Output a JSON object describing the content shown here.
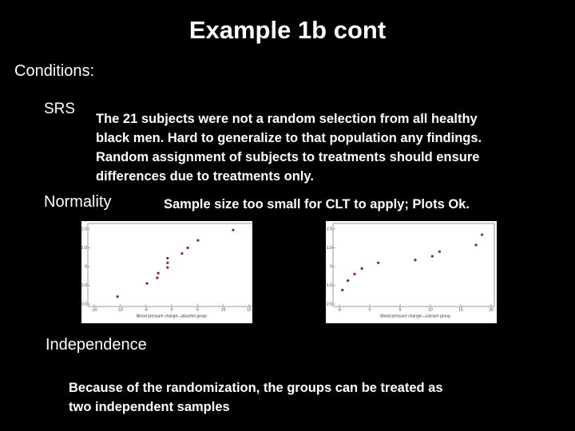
{
  "title": "Example 1b cont",
  "conditions_heading": "Conditions:",
  "srs": {
    "label": "SRS",
    "lines": [
      "The 21 subjects were not a random selection from all healthy",
      "black men.  Hard to generalize to that population any findings.",
      "Random assignment of subjects to treatments should ensure",
      "differences due to treatments only."
    ]
  },
  "normality": {
    "label": "Normality",
    "text": "Sample size too small for CLT to apply; Plots Ok."
  },
  "plots": [
    {
      "type": "scatter",
      "xlabel": "Blood pressure change—placebo group",
      "xlim": [
        -15,
        15
      ],
      "ylim": [
        -2,
        2
      ],
      "xticks": [
        -15,
        -10,
        -5,
        0,
        5,
        10,
        15
      ],
      "yticks": [
        {
          "value": 2,
          "label": "2.0"
        },
        {
          "value": 1,
          "label": "1.0"
        },
        0,
        {
          "value": -1,
          "label": "−1.0"
        },
        {
          "value": -2,
          "label": "−2.0"
        }
      ],
      "color": "#8b1a4a",
      "x": [
        -10.5,
        -4.8,
        -2.8,
        -2.6,
        -0.8,
        -0.8,
        -0.8,
        2,
        3.1,
        5.1,
        11.9
      ],
      "y": [
        -1.6,
        -0.9,
        -0.6,
        -0.35,
        -0.05,
        0.2,
        0.45,
        0.7,
        1.0,
        1.4,
        1.95
      ]
    },
    {
      "type": "scatter",
      "xlabel": "Blood pressure change—calcium group",
      "xlim": [
        -5,
        20
      ],
      "ylim": [
        -2,
        2
      ],
      "xticks": [
        -5,
        0,
        5,
        10,
        15,
        20
      ],
      "yticks": [
        {
          "value": 2,
          "label": "2.0"
        },
        {
          "value": 1,
          "label": "1.0"
        },
        0,
        {
          "value": -1,
          "label": "−1.0"
        },
        {
          "value": -2,
          "label": "−2.0"
        }
      ],
      "color": "#8b1a4a",
      "x": [
        -4.5,
        -3.6,
        -2.5,
        -1.3,
        1.4,
        7.5,
        10.3,
        11.5,
        17.5,
        18.5
      ],
      "y": [
        -1.25,
        -0.75,
        -0.4,
        -0.1,
        0.2,
        0.35,
        0.55,
        0.8,
        1.15,
        1.7
      ]
    }
  ],
  "independence": {
    "label": "Independence",
    "lines": [
      "Because of the randomization, the groups can be treated as",
      "two independent samples"
    ]
  }
}
